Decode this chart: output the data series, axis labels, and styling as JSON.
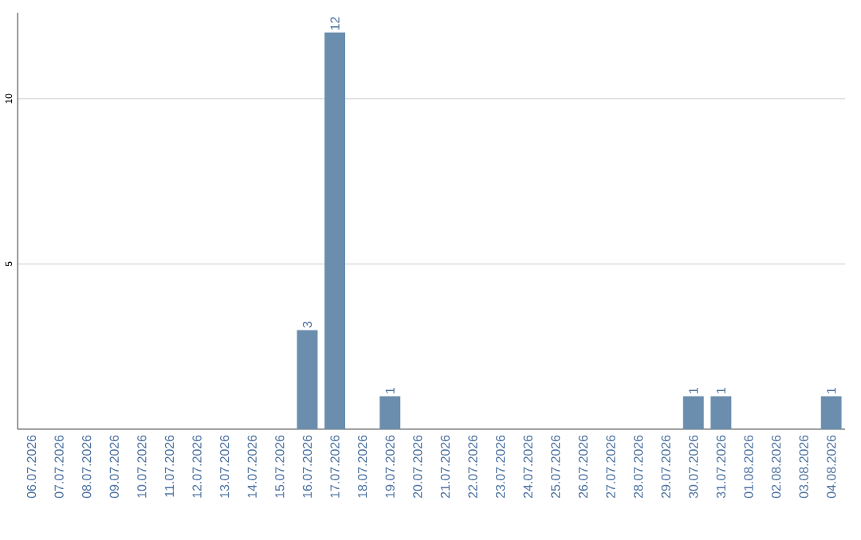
{
  "chart_data": {
    "type": "bar",
    "categories": [
      "06.07.2026",
      "07.07.2026",
      "08.07.2026",
      "09.07.2026",
      "10.07.2026",
      "11.07.2026",
      "12.07.2026",
      "13.07.2026",
      "14.07.2026",
      "15.07.2026",
      "16.07.2026",
      "17.07.2026",
      "18.07.2026",
      "19.07.2026",
      "20.07.2026",
      "21.07.2026",
      "22.07.2026",
      "23.07.2026",
      "24.07.2026",
      "25.07.2026",
      "26.07.2026",
      "27.07.2026",
      "28.07.2026",
      "29.07.2026",
      "30.07.2026",
      "31.07.2026",
      "01.08.2026",
      "02.08.2026",
      "03.08.2026",
      "04.08.2026"
    ],
    "values": [
      0,
      0,
      0,
      0,
      0,
      0,
      0,
      0,
      0,
      0,
      3,
      12,
      0,
      1,
      0,
      0,
      0,
      0,
      0,
      0,
      0,
      0,
      0,
      0,
      1,
      1,
      0,
      0,
      0,
      1
    ],
    "value_labels": [
      null,
      null,
      null,
      null,
      null,
      null,
      null,
      null,
      null,
      null,
      "3",
      "12",
      null,
      "1",
      null,
      null,
      null,
      null,
      null,
      null,
      null,
      null,
      null,
      null,
      "1",
      "1",
      null,
      null,
      null,
      "1"
    ],
    "color": "#6b8eae",
    "ylim": [
      0,
      12.6
    ],
    "yticks": [
      5,
      10
    ],
    "grid": "y"
  }
}
